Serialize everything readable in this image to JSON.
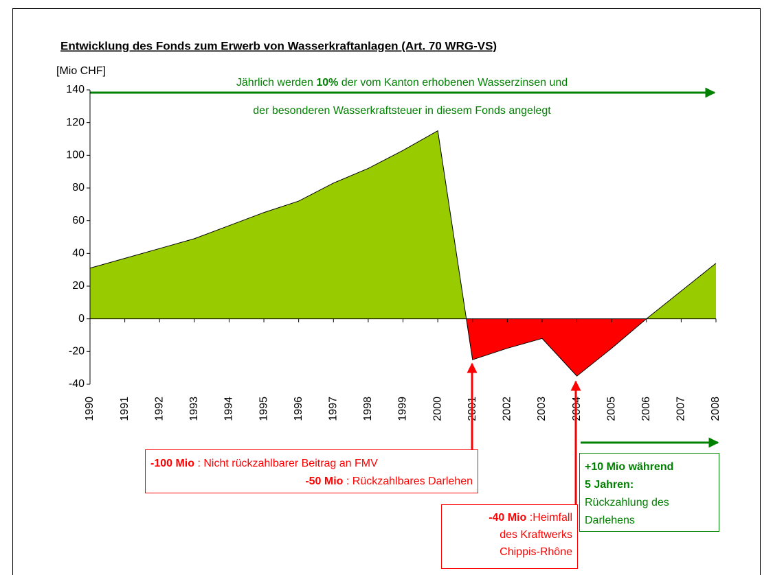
{
  "chart_data": {
    "type": "area",
    "title": "Entwicklung des Fonds zum Erwerb von Wasserkraftanlagen (Art. 70 WRG-VS)",
    "y_label": "[Mio CHF]",
    "categories": [
      "1990",
      "1991",
      "1992",
      "1993",
      "1994",
      "1995",
      "1996",
      "1997",
      "1998",
      "1999",
      "2000",
      "2001",
      "2002",
      "2003",
      "2004",
      "2005",
      "2006",
      "2007",
      "2008"
    ],
    "values": [
      31,
      37,
      43,
      49,
      57,
      65,
      72,
      83,
      92,
      103,
      115,
      -25,
      -18,
      -12,
      -35,
      -18,
      0,
      17,
      34
    ],
    "positive_color": "#99cc00",
    "negative_color": "#ff0000",
    "ylim": [
      -40,
      140
    ],
    "yticks": [
      -40,
      -20,
      0,
      20,
      40,
      60,
      80,
      100,
      120,
      140
    ],
    "annotations": {
      "top_note": {
        "line1": [
          "Jährlich werden ",
          "10%",
          " der vom Kanton erhobenen Wasserzinsen und"
        ],
        "line2": "der besonderen Wasserkraftsteuer in diesem Fonds angelegt"
      },
      "box_2001": {
        "line1": [
          "-100 Mio",
          " : Nicht rückzahlbarer Beitrag an FMV"
        ],
        "line2": [
          "-50 Mio",
          " : Rückzahlbares Darlehen"
        ]
      },
      "box_2004": {
        "line1": [
          "-40 Mio",
          " :Heimfall"
        ],
        "line2": "des Kraftwerks",
        "line3": "Chippis-Rhône"
      },
      "box_repay": {
        "line1": "+10 Mio während",
        "line2": "5 Jahren:",
        "line3": "Rückzahlung des",
        "line4": "Darlehens"
      }
    }
  }
}
